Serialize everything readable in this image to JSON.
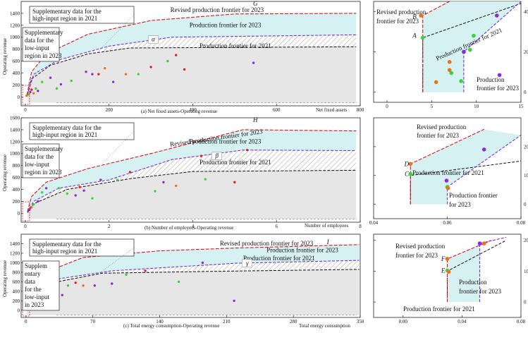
{
  "colors": {
    "frontier_revised": "#e0121a",
    "frontier_2023": "#7a2fe0",
    "frontier_2021": "#111111",
    "fill_2023": "#cfeeee",
    "fill_2021": "#e6e6e6",
    "orange": "#e8731a",
    "green": "#3ad13a",
    "purple": "#8a2be2",
    "red": "#e02020"
  },
  "chart_data": [
    {
      "panel": "a",
      "type": "scatter",
      "caption": "(a) Net fixed assets-Operating revenue",
      "xlabel": "Net fixed assets",
      "ylabel": "Operating revenue",
      "xlim": [
        -10,
        800
      ],
      "ylim": [
        -150,
        1600
      ],
      "x_ticks": [
        0,
        200,
        400,
        600,
        800
      ],
      "x_tick_labels": [
        "0",
        "200",
        "400",
        "600",
        "800"
      ],
      "y_ticks": [
        0,
        200,
        400,
        600,
        800,
        1000,
        1200,
        1400
      ],
      "y_tick_labels": [
        "0",
        "200",
        "400",
        "600",
        "800",
        "1000",
        "1200",
        "1400"
      ],
      "annotations": {
        "supp_high": "Supplementary data for the high-input region in 2021",
        "supp_low": "Supplementary data for the low-input region in 2023",
        "revised": "Revised production frontier for 2023",
        "pf2023": "Production frontier for 2023",
        "pf2021": "Production frontier for 2021",
        "point_label": "G",
        "region_label": "α"
      },
      "frontier_revised": {
        "x": [
          4,
          15,
          50,
          150,
          300,
          500,
          790
        ],
        "y": [
          35,
          420,
          720,
          1050,
          1280,
          1390,
          1400
        ]
      },
      "frontier_2023": {
        "x": [
          5,
          20,
          80,
          200,
          350,
          790
        ],
        "y": [
          40,
          380,
          620,
          850,
          1000,
          1040
        ]
      },
      "frontier_2021": {
        "x": [
          5,
          15,
          60,
          150,
          250,
          790
        ],
        "y": [
          25,
          300,
          530,
          720,
          820,
          840
        ]
      },
      "points": [
        {
          "x": 40,
          "y": 250,
          "c": "green"
        },
        {
          "x": 60,
          "y": 320,
          "c": "purple"
        },
        {
          "x": 75,
          "y": 140,
          "c": "green"
        },
        {
          "x": 85,
          "y": 210,
          "c": "purple"
        },
        {
          "x": 110,
          "y": 270,
          "c": "green"
        },
        {
          "x": 145,
          "y": 420,
          "c": "purple"
        },
        {
          "x": 160,
          "y": 380,
          "c": "purple"
        },
        {
          "x": 175,
          "y": 380,
          "c": "red"
        },
        {
          "x": 190,
          "y": 480,
          "c": "orange"
        },
        {
          "x": 210,
          "y": 250,
          "c": "purple"
        },
        {
          "x": 240,
          "y": 380,
          "c": "orange"
        },
        {
          "x": 270,
          "y": 380,
          "c": "green"
        },
        {
          "x": 300,
          "y": 500,
          "c": "red"
        },
        {
          "x": 340,
          "y": 600,
          "c": "green"
        },
        {
          "x": 380,
          "y": 460,
          "c": "red"
        },
        {
          "x": 360,
          "y": 700,
          "c": "red"
        },
        {
          "x": 545,
          "y": 570,
          "c": "purple"
        },
        {
          "x": 25,
          "y": 140,
          "c": "green"
        },
        {
          "x": 30,
          "y": 100,
          "c": "purple"
        },
        {
          "x": 20,
          "y": 60,
          "c": "orange"
        },
        {
          "x": 12,
          "y": 80,
          "c": "purple"
        },
        {
          "x": 8,
          "y": 40,
          "c": "green"
        },
        {
          "x": 15,
          "y": 120,
          "c": "red"
        },
        {
          "x": 3,
          "y": 20,
          "c": "orange"
        }
      ]
    },
    {
      "panel": "a-zoom",
      "type": "scatter",
      "xlim": [
        -1.5,
        15
      ],
      "ylim": [
        -5,
        45
      ],
      "x_ticks": [
        0,
        5,
        10,
        15
      ],
      "x_tick_labels": [
        "0",
        "5",
        "10",
        "15"
      ],
      "y_ticks": [
        0,
        20,
        40
      ],
      "y_tick_labels": [
        "0",
        "20",
        "40"
      ],
      "annotations": {
        "revised": "Revised production frontier for 2023",
        "pf2021": "Production frontier for 2021",
        "pf2023": "Production frontier for 2023",
        "A": "A",
        "B": "B"
      },
      "frontier_revised": {
        "x": [
          4,
          4,
          7
        ],
        "y": [
          0,
          38,
          45
        ]
      },
      "frontier_2023": {
        "x": [
          8.6,
          8.6,
          15
        ],
        "y": [
          0,
          20,
          45
        ]
      },
      "frontier_2021": {
        "x": [
          4,
          4,
          15
        ],
        "y": [
          0,
          27,
          44
        ]
      },
      "points": [
        {
          "x": 3.8,
          "y": 38,
          "c": "orange"
        },
        {
          "x": 4,
          "y": 27,
          "c": "green"
        },
        {
          "x": 5.5,
          "y": 5,
          "c": "orange"
        },
        {
          "x": 7,
          "y": 15,
          "c": "orange"
        },
        {
          "x": 7,
          "y": 11,
          "c": "orange"
        },
        {
          "x": 7.2,
          "y": 9.5,
          "c": "green"
        },
        {
          "x": 8.3,
          "y": 5.5,
          "c": "green"
        },
        {
          "x": 8.6,
          "y": 20,
          "c": "purple"
        },
        {
          "x": 9.3,
          "y": 21,
          "c": "green"
        },
        {
          "x": 9.7,
          "y": 28,
          "c": "green"
        },
        {
          "x": 12.3,
          "y": 38,
          "c": "purple"
        },
        {
          "x": 12.6,
          "y": 8.5,
          "c": "purple"
        },
        {
          "x": 8.6,
          "y": 20,
          "c": "purple"
        }
      ]
    },
    {
      "panel": "b",
      "type": "scatter",
      "caption": "(b) Number of employees-Operating revenue",
      "xlabel": "Number of employees",
      "ylabel": "Operating revenue",
      "xlim": [
        -0.1,
        8
      ],
      "ylim": [
        -150,
        1600
      ],
      "x_ticks": [
        0,
        2,
        4,
        6,
        8
      ],
      "x_tick_labels": [
        "0",
        "2",
        "4",
        "6",
        "8"
      ],
      "y_ticks": [
        0,
        200,
        400,
        600,
        800,
        1000,
        1200,
        1400,
        1600
      ],
      "y_tick_labels": [
        "0",
        "200",
        "400",
        "600",
        "800",
        "1000",
        "1200",
        "1400",
        "1600"
      ],
      "annotations": {
        "supp_high": "Supplementary data for the high-input region in 2021",
        "supp_low": "Supplementary data for the low-input region in 2023",
        "revised": "Revised production frontier for 2023",
        "pf2023": "Production frontier for 2023",
        "pf2021": "Production frontier for 2021",
        "point_label": "H",
        "region_label": "β"
      },
      "frontier_revised": {
        "x": [
          0.05,
          0.15,
          0.5,
          1.5,
          3,
          5.2,
          7.9
        ],
        "y": [
          30,
          280,
          520,
          750,
          1000,
          1400,
          1380
        ]
      },
      "frontier_2023": {
        "x": [
          0.05,
          0.2,
          0.8,
          2,
          3.5,
          5.2,
          7.9
        ],
        "y": [
          20,
          200,
          420,
          560,
          900,
          1060,
          1050
        ]
      },
      "frontier_2021": {
        "x": [
          0.05,
          0.2,
          1,
          2.5,
          4,
          7.9
        ],
        "y": [
          10,
          160,
          400,
          580,
          700,
          720
        ]
      },
      "points": [
        {
          "x": 0.4,
          "y": 350,
          "c": "green"
        },
        {
          "x": 0.5,
          "y": 420,
          "c": "purple"
        },
        {
          "x": 0.8,
          "y": 420,
          "c": "green"
        },
        {
          "x": 1.0,
          "y": 330,
          "c": "green"
        },
        {
          "x": 1.2,
          "y": 300,
          "c": "purple"
        },
        {
          "x": 1.3,
          "y": 440,
          "c": "red"
        },
        {
          "x": 1.4,
          "y": 380,
          "c": "purple"
        },
        {
          "x": 1.6,
          "y": 250,
          "c": "green"
        },
        {
          "x": 1.8,
          "y": 560,
          "c": "purple"
        },
        {
          "x": 2.2,
          "y": 560,
          "c": "green"
        },
        {
          "x": 2.5,
          "y": 690,
          "c": "red"
        },
        {
          "x": 3.1,
          "y": 370,
          "c": "green"
        },
        {
          "x": 3.3,
          "y": 520,
          "c": "purple"
        },
        {
          "x": 3.6,
          "y": 460,
          "c": "orange"
        },
        {
          "x": 4.3,
          "y": 570,
          "c": "green"
        },
        {
          "x": 4.2,
          "y": 960,
          "c": "red"
        },
        {
          "x": 5.0,
          "y": 520,
          "c": "red"
        },
        {
          "x": 5.3,
          "y": 1060,
          "c": "red"
        },
        {
          "x": 0.2,
          "y": 150,
          "c": "green"
        },
        {
          "x": 0.15,
          "y": 100,
          "c": "orange"
        },
        {
          "x": 0.1,
          "y": 60,
          "c": "purple"
        },
        {
          "x": 0.3,
          "y": 200,
          "c": "purple"
        }
      ]
    },
    {
      "panel": "b-zoom",
      "type": "scatter",
      "xlim": [
        0.04,
        0.08
      ],
      "ylim": [
        -5,
        30
      ],
      "x_ticks": [
        0.04,
        0.06,
        0.08
      ],
      "x_tick_labels": [
        "0.04",
        "0.06",
        "0.08"
      ],
      "y_ticks": [
        0,
        10,
        20
      ],
      "y_tick_labels": [
        "0",
        "10",
        "20"
      ],
      "annotations": {
        "revised": "Revised production frontier for 2023",
        "pf2021": "Production frontier for 2021",
        "pf2023": "Production frontier for 2023",
        "C": "C",
        "D": "D"
      },
      "frontier_revised": {
        "x": [
          0.05,
          0.05,
          0.07
        ],
        "y": [
          0,
          14,
          26
        ]
      },
      "frontier_2023": {
        "x": [
          0.06,
          0.06,
          0.08
        ],
        "y": [
          0,
          6,
          24
        ]
      },
      "frontier_2021": {
        "x": [
          0.05,
          0.05,
          0.08
        ],
        "y": [
          0,
          10,
          15
        ]
      },
      "points": [
        {
          "x": 0.05,
          "y": 14,
          "c": "orange"
        },
        {
          "x": 0.05,
          "y": 10.5,
          "c": "green"
        },
        {
          "x": 0.06,
          "y": 6,
          "c": "green"
        },
        {
          "x": 0.0602,
          "y": 5.6,
          "c": "orange"
        },
        {
          "x": 0.07,
          "y": 19,
          "c": "purple"
        },
        {
          "x": 0.0598,
          "y": 8.2,
          "c": "purple"
        }
      ]
    },
    {
      "panel": "c",
      "type": "scatter",
      "caption": "(c) Total energy consumption-Operating revenue",
      "xlabel": "Total energy consumption",
      "ylabel": "Operating revenue",
      "xlim": [
        -5,
        350
      ],
      "ylim": [
        -150,
        1600
      ],
      "x_ticks": [
        0,
        70,
        140,
        210,
        280,
        350
      ],
      "x_tick_labels": [
        "0",
        "70",
        "140",
        "210",
        "280",
        "350"
      ],
      "y_ticks": [
        0,
        200,
        400,
        600,
        800,
        1000,
        1200,
        1400
      ],
      "y_tick_labels": [
        "0",
        "200",
        "400",
        "600",
        "800",
        "1000",
        "1200",
        "1400"
      ],
      "annotations": {
        "supp_high": "Supplementary data for the high-input region in 2021",
        "supp_low": "Supplementary data for the low-input region in 2023",
        "revised": "Revised production frontier for 2023",
        "pf2023": "Production frontier for 2023",
        "pf2021": "Production frontier for 2021",
        "point_label": "I",
        "region_label": "γ"
      },
      "frontier_revised": {
        "x": [
          0.5,
          1,
          60,
          140,
          220,
          349
        ],
        "y": [
          40,
          650,
          1110,
          1250,
          1310,
          1380
        ]
      },
      "frontier_2023": {
        "x": [
          0.5,
          2,
          30,
          90,
          220,
          349
        ],
        "y": [
          30,
          540,
          650,
          830,
          990,
          1050
        ]
      },
      "frontier_2021": {
        "x": [
          0.5,
          1,
          20,
          80,
          200,
          349
        ],
        "y": [
          20,
          380,
          550,
          780,
          820,
          860
        ]
      },
      "points": [
        {
          "x": 12,
          "y": 380,
          "c": "orange"
        },
        {
          "x": 15,
          "y": 460,
          "c": "green"
        },
        {
          "x": 20,
          "y": 500,
          "c": "purple"
        },
        {
          "x": 25,
          "y": 300,
          "c": "green"
        },
        {
          "x": 30,
          "y": 560,
          "c": "purple"
        },
        {
          "x": 38,
          "y": 320,
          "c": "purple"
        },
        {
          "x": 44,
          "y": 520,
          "c": "green"
        },
        {
          "x": 52,
          "y": 580,
          "c": "red"
        },
        {
          "x": 60,
          "y": 520,
          "c": "orange"
        },
        {
          "x": 72,
          "y": 520,
          "c": "purple"
        },
        {
          "x": 90,
          "y": 560,
          "c": "purple"
        },
        {
          "x": 105,
          "y": 750,
          "c": "green"
        },
        {
          "x": 125,
          "y": 830,
          "c": "red"
        },
        {
          "x": 160,
          "y": 600,
          "c": "green"
        },
        {
          "x": 185,
          "y": 1000,
          "c": "purple"
        },
        {
          "x": 218,
          "y": 200,
          "c": "purple"
        },
        {
          "x": 5,
          "y": 250,
          "c": "green"
        },
        {
          "x": 6,
          "y": 150,
          "c": "orange"
        },
        {
          "x": 3,
          "y": 100,
          "c": "red"
        },
        {
          "x": 8,
          "y": 200,
          "c": "purple"
        }
      ]
    },
    {
      "panel": "c-zoom",
      "type": "scatter",
      "xlim": [
        -0.02,
        0.08
      ],
      "ylim": [
        -5,
        22
      ],
      "x_ticks": [
        0,
        0.04,
        0.08
      ],
      "x_tick_labels": [
        "0.00",
        "0.04",
        "0.08"
      ],
      "y_ticks": [
        0,
        10,
        20
      ],
      "y_tick_labels": [
        "0",
        "10",
        "20"
      ],
      "annotations": {
        "revised": "Revised production frontier for 2023",
        "pf2021": "Production frontier for 2021",
        "pf2023": "Production frontier for 2023",
        "E": "E",
        "F": "F"
      },
      "frontier_revised": {
        "x": [
          0.03,
          0.03,
          0.06
        ],
        "y": [
          0,
          14,
          20
        ]
      },
      "frontier_2023": {
        "x": [
          0.052,
          0.052,
          0.07
        ],
        "y": [
          0,
          19,
          21
        ]
      },
      "frontier_2021": {
        "x": [
          0.03,
          0.03,
          0.07
        ],
        "y": [
          0,
          10,
          20
        ]
      },
      "points": [
        {
          "x": 0.03,
          "y": 14,
          "c": "orange"
        },
        {
          "x": 0.03,
          "y": 10.2,
          "c": "green"
        },
        {
          "x": 0.031,
          "y": 9.8,
          "c": "orange"
        },
        {
          "x": 0.052,
          "y": 19,
          "c": "purple"
        },
        {
          "x": 0.055,
          "y": 19,
          "c": "orange"
        }
      ]
    }
  ]
}
